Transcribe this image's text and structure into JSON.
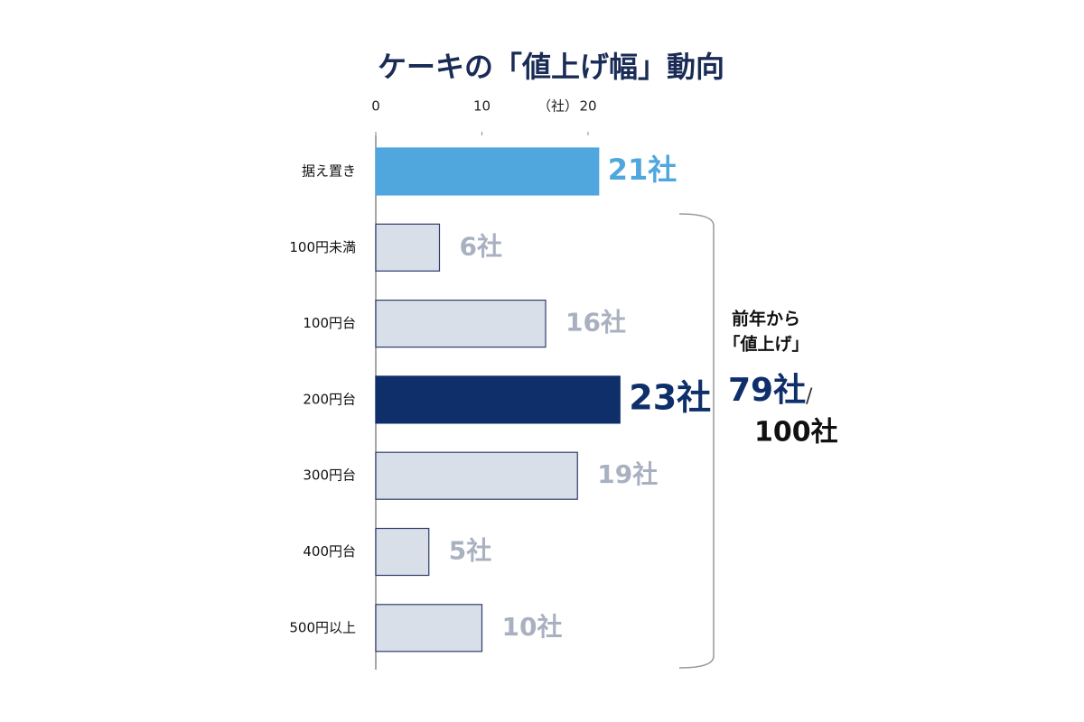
{
  "chart_data": {
    "type": "barh",
    "title": "ケーキの「値上げ幅」動向",
    "categories": [
      "据え置き",
      "100円未満",
      "100円台",
      "200円台",
      "300円台",
      "400円台",
      "500円以上"
    ],
    "values": [
      21,
      6,
      16,
      23,
      19,
      5,
      10
    ],
    "value_labels": [
      "21社",
      "6社",
      "16社",
      "23社",
      "19社",
      "5社",
      "10社"
    ],
    "colors": [
      "#4fa7dd",
      "#d9dfe9",
      "#d9dfe9",
      "#0e2f6a",
      "#d9dfe9",
      "#d9dfe9",
      "#d9dfe9"
    ],
    "label_colors": [
      "#4fa7dd",
      "#a9b1c1",
      "#a9b1c1",
      "#0e2f6a",
      "#a9b1c1",
      "#a9b1c1",
      "#a9b1c1"
    ],
    "xlim": [
      0,
      25
    ],
    "xticks": [
      0,
      10,
      20
    ],
    "axis_unit": "（社）",
    "annotation": {
      "lines": [
        "前年から",
        "「値上げ」"
      ],
      "count": "79社",
      "separator": "/",
      "total": "100社"
    }
  }
}
